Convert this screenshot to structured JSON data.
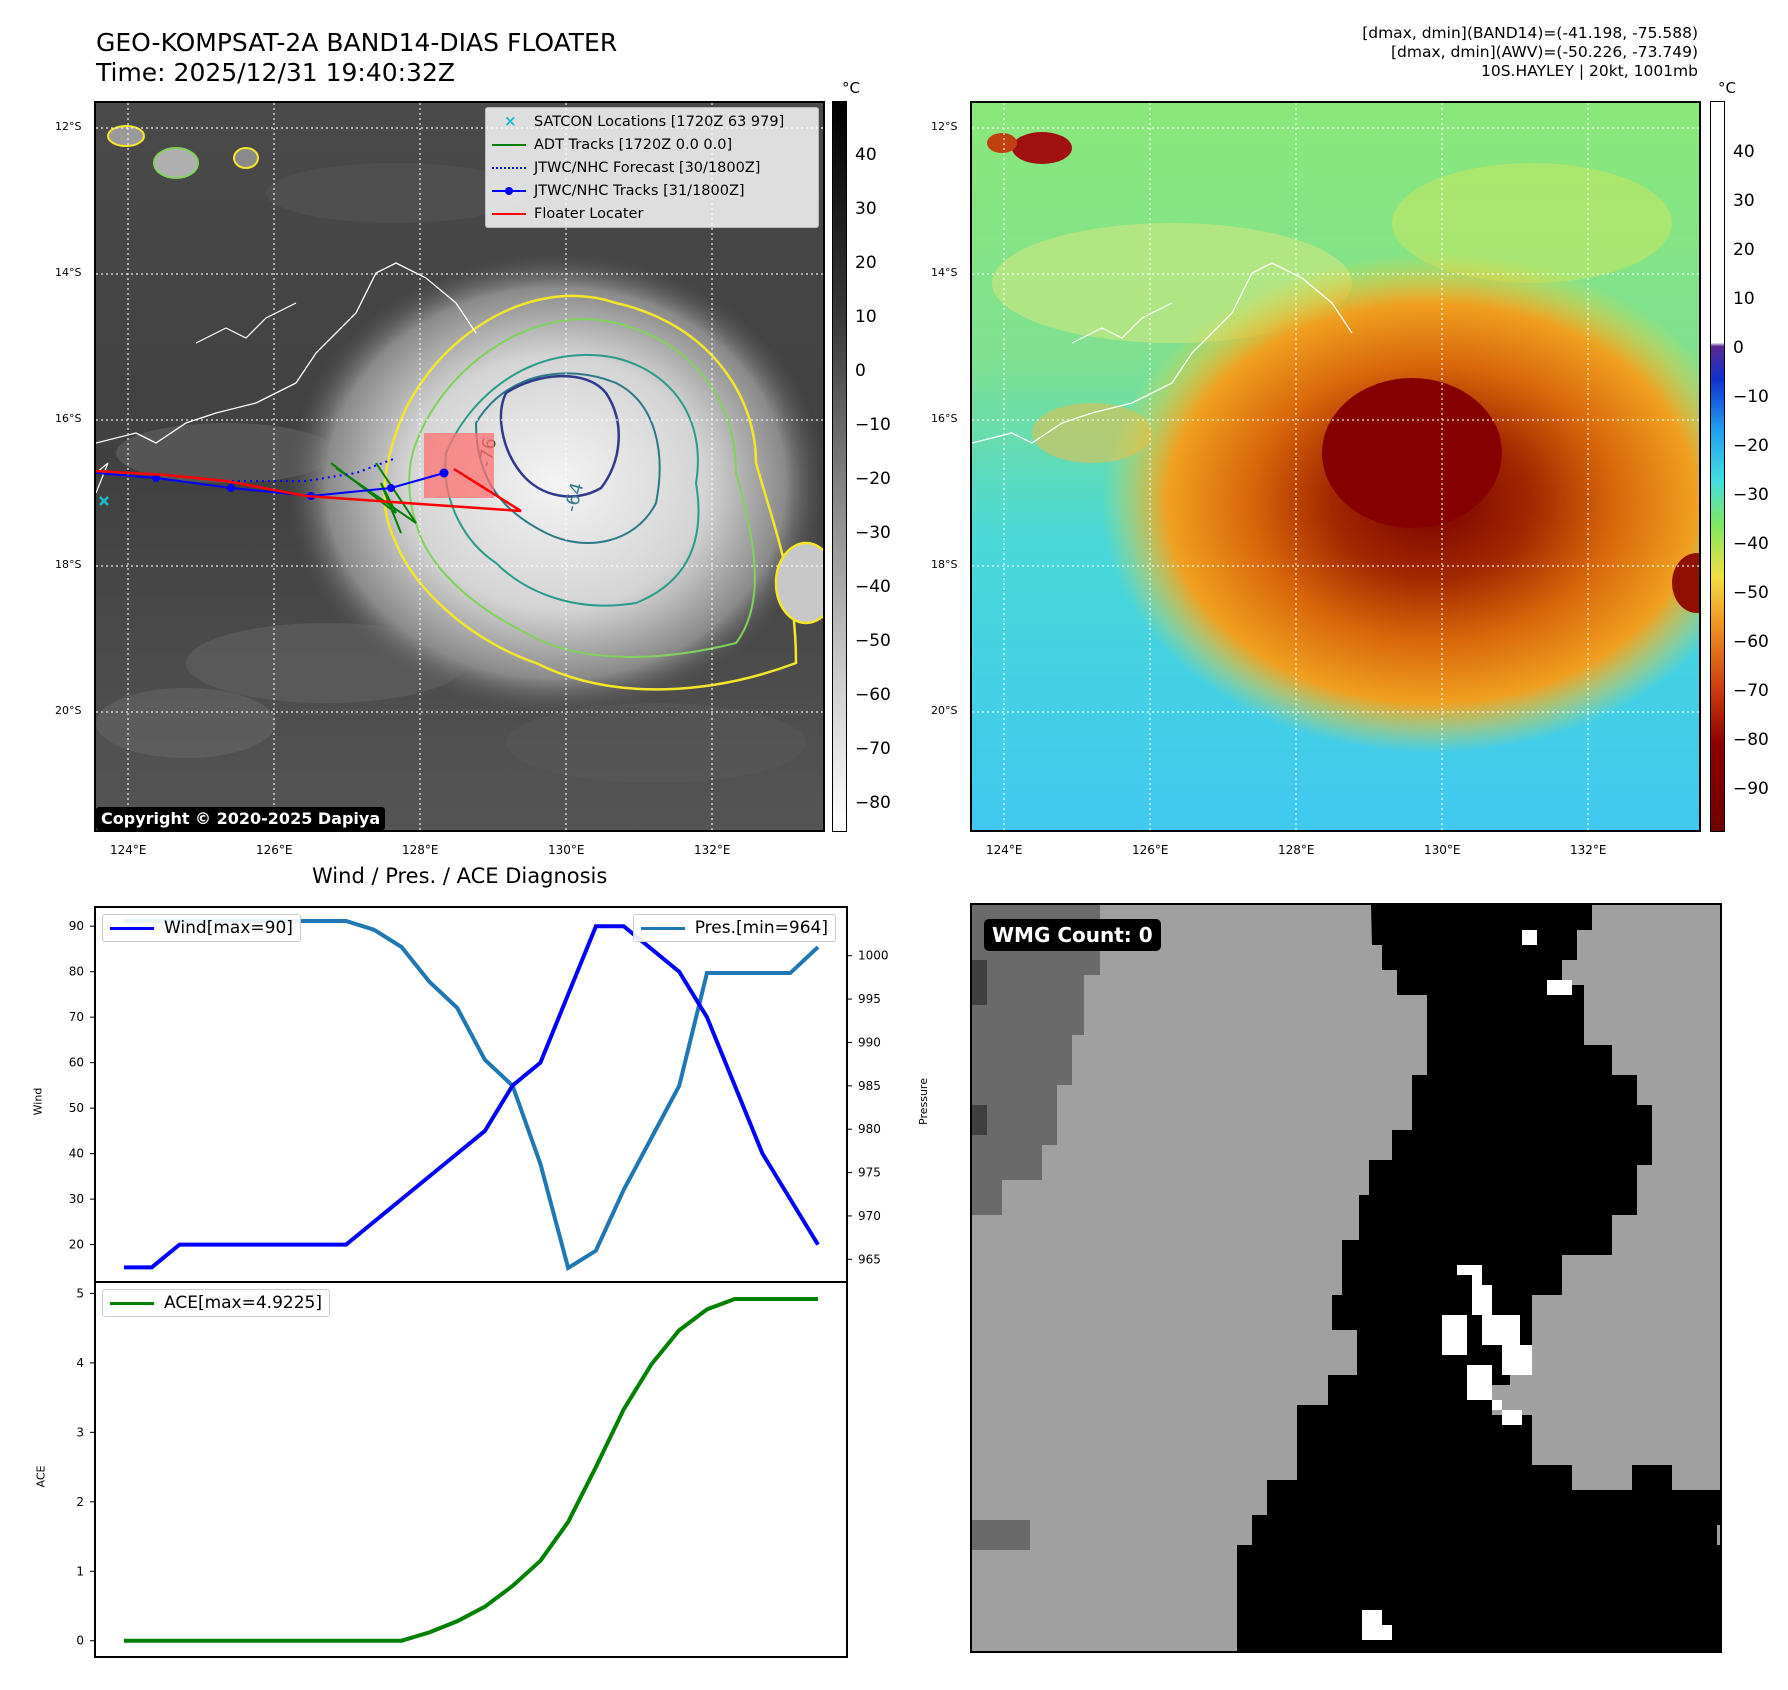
{
  "header": {
    "title_line1": "GEO-KOMPSAT-2A BAND14-DIAS FLOATER",
    "title_line2": "Time: 2025/12/31 19:40:32Z",
    "info_line1": "[dmax, dmin](BAND14)=(-41.198, -75.588)",
    "info_line2": "[dmax, dmin](AWV)=(-50.226, -73.749)",
    "info_line3": "10S.HAYLEY | 20kt, 1001mb"
  },
  "map": {
    "lat_labels": [
      "12°S",
      "14°S",
      "16°S",
      "18°S",
      "20°S"
    ],
    "lon_labels": [
      "124°E",
      "126°E",
      "128°E",
      "130°E",
      "132°E"
    ],
    "copyright": "Copyright © 2020-2025 Dapiya",
    "legend": [
      {
        "label": "SATCON Locations [1720Z 63 979]",
        "color": "#17becf",
        "style": "x"
      },
      {
        "label": "ADT Tracks [1720Z 0.0 0.0]",
        "color": "#008000",
        "style": "line"
      },
      {
        "label": "JTWC/NHC Forecast [30/1800Z]",
        "color": "#0000ff",
        "style": "dotted"
      },
      {
        "label": "JTWC/NHC Tracks [31/1800Z]",
        "color": "#0000ff",
        "style": "dotline"
      },
      {
        "label": "Floater Locater",
        "color": "#ff0000",
        "style": "line"
      }
    ],
    "contour_labels": [
      "-76",
      "-64"
    ],
    "colorbar_left": {
      "unit": "°C",
      "ticks": [
        "40",
        "30",
        "20",
        "10",
        "0",
        "−10",
        "−20",
        "−30",
        "−40",
        "−50",
        "−60",
        "−70",
        "−80"
      ]
    },
    "colorbar_right": {
      "unit": "°C",
      "ticks": [
        "40",
        "30",
        "20",
        "10",
        "0",
        "−10",
        "−20",
        "−30",
        "−40",
        "−50",
        "−60",
        "−70",
        "−80",
        "−90"
      ]
    }
  },
  "diagnosis": {
    "title": "Wind / Pres. / ACE Diagnosis",
    "wmg_label": "WMG Count: 0"
  },
  "chart_data": [
    {
      "type": "line",
      "title": "Wind / Pres. / ACE Diagnosis",
      "series": [
        {
          "name": "Wind[max=90]",
          "axis": "left",
          "color": "#0000ff",
          "x": [
            0,
            1,
            2,
            3,
            4,
            5,
            6,
            7,
            8,
            9,
            10,
            11,
            12,
            13,
            14,
            15,
            16,
            17,
            18,
            19,
            20,
            21,
            22,
            23,
            24,
            25
          ],
          "values": [
            15,
            15,
            20,
            20,
            20,
            20,
            20,
            20,
            20,
            25,
            30,
            35,
            40,
            45,
            55,
            60,
            75,
            90,
            90,
            85,
            80,
            70,
            55,
            40,
            30,
            20
          ]
        },
        {
          "name": "Pres.[min=964]",
          "axis": "right",
          "color": "#1f77b4",
          "x": [
            0,
            1,
            2,
            3,
            4,
            5,
            6,
            7,
            8,
            9,
            10,
            11,
            12,
            13,
            14,
            15,
            16,
            17,
            18,
            19,
            20,
            21,
            22,
            23,
            24,
            25
          ],
          "values": [
            1004,
            1004,
            1004,
            1004,
            1004,
            1004,
            1004,
            1004,
            1004,
            1003,
            1001,
            997,
            994,
            988,
            985,
            976,
            964,
            966,
            973,
            979,
            985,
            998,
            998,
            998,
            998,
            1001
          ]
        }
      ],
      "ylabel_left": "Wind",
      "ylabel_right": "Pressure",
      "yticks_left": [
        20,
        30,
        40,
        50,
        60,
        70,
        80,
        90
      ],
      "yticks_right": [
        965,
        970,
        975,
        980,
        985,
        990,
        995,
        1000
      ],
      "ylim_left": [
        12,
        94
      ],
      "ylim_right": [
        962.5,
        1005.5
      ]
    },
    {
      "type": "line",
      "series": [
        {
          "name": "ACE[max=4.9225]",
          "color": "#008000",
          "x": [
            0,
            1,
            2,
            3,
            4,
            5,
            6,
            7,
            8,
            9,
            10,
            11,
            12,
            13,
            14,
            15,
            16,
            17,
            18,
            19,
            20,
            21,
            22,
            23,
            24,
            25
          ],
          "values": [
            0,
            0,
            0,
            0,
            0,
            0,
            0,
            0,
            0,
            0,
            0,
            0.12,
            0.28,
            0.49,
            0.79,
            1.15,
            1.71,
            2.5,
            3.33,
            3.98,
            4.47,
            4.77,
            4.92,
            4.92,
            4.92,
            4.92
          ]
        }
      ],
      "ylabel": "ACE",
      "yticks": [
        0,
        1,
        2,
        3,
        4,
        5
      ],
      "ylim": [
        -0.22,
        5.15
      ]
    }
  ]
}
